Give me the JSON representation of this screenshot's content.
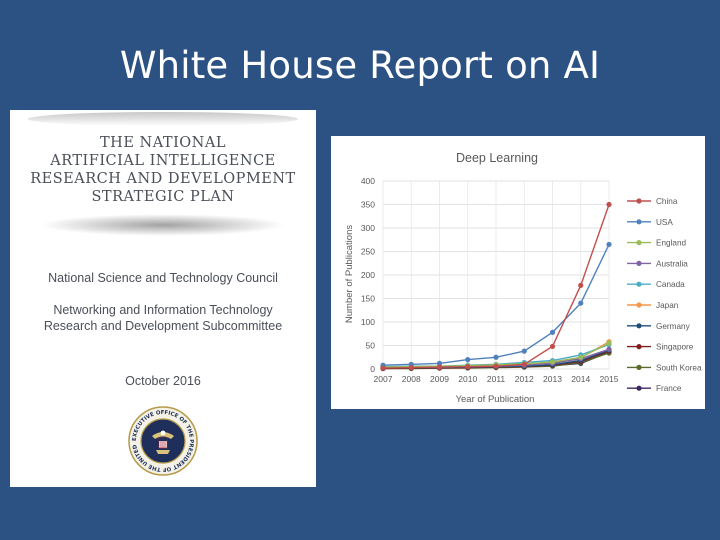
{
  "slide": {
    "title": "White House Report on AI"
  },
  "cover": {
    "title_lines": [
      "THE NATIONAL",
      "ARTIFICIAL INTELLIGENCE",
      "RESEARCH AND DEVELOPMENT",
      "STRATEGIC PLAN"
    ],
    "council": "National Science and Technology Council",
    "subcommittee_lines": [
      "Networking and Information Technology",
      "Research and Development Subcommittee"
    ],
    "date": "October 2016",
    "seal_text": "EXECUTIVE OFFICE OF THE PRESIDENT OF THE UNITED STATES"
  },
  "chart_data": {
    "type": "line",
    "title": "Deep Learning",
    "xlabel": "Year of Publication",
    "ylabel": "Number of Publications",
    "x": [
      "2007",
      "2008",
      "2009",
      "2010",
      "2011",
      "2012",
      "2013",
      "2014",
      "2015"
    ],
    "ylim": [
      0,
      400
    ],
    "yticks": [
      0,
      50,
      100,
      150,
      200,
      250,
      300,
      350,
      400
    ],
    "grid": true,
    "legend": "right",
    "series": [
      {
        "name": "China",
        "color": "#c0504d",
        "values": [
          2,
          3,
          4,
          5,
          6,
          10,
          48,
          178,
          350
        ]
      },
      {
        "name": "USA",
        "color": "#4f81bd",
        "values": [
          8,
          10,
          12,
          20,
          25,
          38,
          78,
          140,
          265
        ]
      },
      {
        "name": "England",
        "color": "#9bbb59",
        "values": [
          4,
          5,
          6,
          7,
          9,
          11,
          15,
          25,
          55
        ]
      },
      {
        "name": "Australia",
        "color": "#8064a2",
        "values": [
          3,
          4,
          4,
          5,
          6,
          8,
          12,
          22,
          42
        ]
      },
      {
        "name": "Canada",
        "color": "#4bacc6",
        "values": [
          5,
          6,
          6,
          8,
          10,
          14,
          18,
          30,
          52
        ]
      },
      {
        "name": "Japan",
        "color": "#f79646",
        "values": [
          3,
          4,
          5,
          6,
          7,
          10,
          14,
          24,
          58
        ]
      },
      {
        "name": "Germany",
        "color": "#1f4e79",
        "values": [
          2,
          3,
          3,
          4,
          5,
          6,
          9,
          18,
          40
        ]
      },
      {
        "name": "Singapore",
        "color": "#7f1f1f",
        "values": [
          1,
          2,
          2,
          3,
          4,
          5,
          8,
          16,
          38
        ]
      },
      {
        "name": "South Korea",
        "color": "#5a6a2a",
        "values": [
          1,
          1,
          2,
          2,
          3,
          4,
          6,
          14,
          34
        ]
      },
      {
        "name": "France",
        "color": "#3a2a60",
        "values": [
          2,
          2,
          3,
          3,
          4,
          5,
          7,
          12,
          36
        ]
      }
    ]
  }
}
